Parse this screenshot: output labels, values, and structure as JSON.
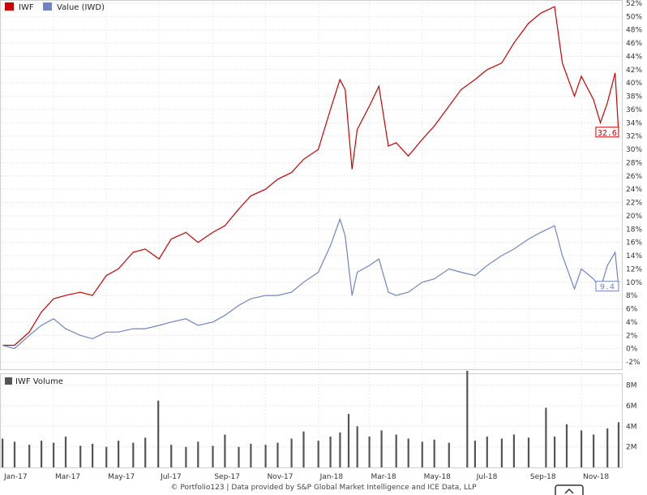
{
  "legend": {
    "items": [
      {
        "label": "IWF",
        "color": "#cc0000"
      },
      {
        "label": "Value (IWD)",
        "color": "#6f84c6"
      }
    ],
    "volume_label": "IWF Volume",
    "volume_color": "#555555"
  },
  "credit": "© Portfolio123 | Data provided by S&P Global Market Intelligence and ICE Data, LLP",
  "chart_data": [
    {
      "type": "line",
      "y_unit": "%",
      "ylim": [
        -2,
        52
      ],
      "y_ticks": [
        "-2%",
        "0%",
        "2%",
        "4%",
        "6%",
        "8%",
        "10%",
        "12%",
        "14%",
        "16%",
        "18%",
        "20%",
        "22%",
        "24%",
        "26%",
        "28%",
        "30%",
        "32%",
        "34%",
        "36%",
        "38%",
        "40%",
        "42%",
        "44%",
        "46%",
        "48%",
        "50%",
        "52%"
      ],
      "x_ticks": [
        "Jan-17",
        "Mar-17",
        "May-17",
        "Jul-17",
        "Sep-17",
        "Nov-17",
        "Jan-18",
        "Mar-18",
        "May-18",
        "Jul-18",
        "Sep-18",
        "Nov-18"
      ],
      "grid": true,
      "legend_position": "top-left",
      "series": [
        {
          "name": "IWF",
          "color": "#cc0000",
          "last_value_label": "32.6",
          "points": [
            [
              "2017-01-01",
              0.5
            ],
            [
              "2017-01-15",
              0.5
            ],
            [
              "2017-02-01",
              2.5
            ],
            [
              "2017-02-15",
              5.5
            ],
            [
              "2017-03-01",
              7.5
            ],
            [
              "2017-03-15",
              8.0
            ],
            [
              "2017-04-01",
              8.5
            ],
            [
              "2017-04-15",
              8.0
            ],
            [
              "2017-05-01",
              11.0
            ],
            [
              "2017-05-15",
              12.0
            ],
            [
              "2017-06-01",
              14.5
            ],
            [
              "2017-06-15",
              15.0
            ],
            [
              "2017-07-01",
              13.5
            ],
            [
              "2017-07-15",
              16.5
            ],
            [
              "2017-08-01",
              17.5
            ],
            [
              "2017-08-15",
              16.0
            ],
            [
              "2017-09-01",
              17.5
            ],
            [
              "2017-09-15",
              18.5
            ],
            [
              "2017-10-01",
              21.0
            ],
            [
              "2017-10-15",
              23.0
            ],
            [
              "2017-11-01",
              24.0
            ],
            [
              "2017-11-15",
              25.5
            ],
            [
              "2017-12-01",
              26.5
            ],
            [
              "2017-12-15",
              28.5
            ],
            [
              "2018-01-01",
              30.0
            ],
            [
              "2018-01-15",
              36.0
            ],
            [
              "2018-01-26",
              40.5
            ],
            [
              "2018-02-01",
              39.0
            ],
            [
              "2018-02-09",
              27.0
            ],
            [
              "2018-02-15",
              33.0
            ],
            [
              "2018-03-01",
              36.5
            ],
            [
              "2018-03-12",
              39.5
            ],
            [
              "2018-03-23",
              30.5
            ],
            [
              "2018-04-01",
              31.0
            ],
            [
              "2018-04-15",
              29.0
            ],
            [
              "2018-05-01",
              31.5
            ],
            [
              "2018-05-15",
              33.5
            ],
            [
              "2018-06-01",
              36.5
            ],
            [
              "2018-06-15",
              39.0
            ],
            [
              "2018-07-01",
              40.5
            ],
            [
              "2018-07-15",
              42.0
            ],
            [
              "2018-08-01",
              43.0
            ],
            [
              "2018-08-15",
              46.0
            ],
            [
              "2018-09-01",
              49.0
            ],
            [
              "2018-09-15",
              50.5
            ],
            [
              "2018-10-01",
              51.5
            ],
            [
              "2018-10-10",
              43.0
            ],
            [
              "2018-10-24",
              38.0
            ],
            [
              "2018-11-01",
              41.0
            ],
            [
              "2018-11-15",
              37.5
            ],
            [
              "2018-11-23",
              34.0
            ],
            [
              "2018-12-01",
              37.0
            ],
            [
              "2018-12-10",
              41.5
            ],
            [
              "2018-12-14",
              32.6
            ]
          ]
        },
        {
          "name": "Value (IWD)",
          "color": "#6f84c6",
          "last_value_label": "9.4",
          "points": [
            [
              "2017-01-01",
              0.5
            ],
            [
              "2017-01-15",
              0.0
            ],
            [
              "2017-02-01",
              2.0
            ],
            [
              "2017-02-15",
              3.5
            ],
            [
              "2017-03-01",
              4.5
            ],
            [
              "2017-03-15",
              3.0
            ],
            [
              "2017-04-01",
              2.0
            ],
            [
              "2017-04-15",
              1.5
            ],
            [
              "2017-05-01",
              2.5
            ],
            [
              "2017-05-15",
              2.5
            ],
            [
              "2017-06-01",
              3.0
            ],
            [
              "2017-06-15",
              3.0
            ],
            [
              "2017-07-01",
              3.5
            ],
            [
              "2017-07-15",
              4.0
            ],
            [
              "2017-08-01",
              4.5
            ],
            [
              "2017-08-15",
              3.5
            ],
            [
              "2017-09-01",
              4.0
            ],
            [
              "2017-09-15",
              5.0
            ],
            [
              "2017-10-01",
              6.5
            ],
            [
              "2017-10-15",
              7.5
            ],
            [
              "2017-11-01",
              8.0
            ],
            [
              "2017-11-15",
              8.0
            ],
            [
              "2017-12-01",
              8.5
            ],
            [
              "2017-12-15",
              10.0
            ],
            [
              "2018-01-01",
              11.5
            ],
            [
              "2018-01-15",
              15.5
            ],
            [
              "2018-01-26",
              19.5
            ],
            [
              "2018-02-01",
              17.0
            ],
            [
              "2018-02-09",
              8.0
            ],
            [
              "2018-02-15",
              11.5
            ],
            [
              "2018-03-01",
              12.5
            ],
            [
              "2018-03-12",
              13.5
            ],
            [
              "2018-03-23",
              8.5
            ],
            [
              "2018-04-01",
              8.0
            ],
            [
              "2018-04-15",
              8.5
            ],
            [
              "2018-05-01",
              10.0
            ],
            [
              "2018-05-15",
              10.5
            ],
            [
              "2018-06-01",
              12.0
            ],
            [
              "2018-06-15",
              11.5
            ],
            [
              "2018-07-01",
              11.0
            ],
            [
              "2018-07-15",
              12.5
            ],
            [
              "2018-08-01",
              14.0
            ],
            [
              "2018-08-15",
              15.0
            ],
            [
              "2018-09-01",
              16.5
            ],
            [
              "2018-09-15",
              17.5
            ],
            [
              "2018-10-01",
              18.5
            ],
            [
              "2018-10-10",
              14.0
            ],
            [
              "2018-10-24",
              9.0
            ],
            [
              "2018-11-01",
              12.0
            ],
            [
              "2018-11-15",
              10.5
            ],
            [
              "2018-11-23",
              9.0
            ],
            [
              "2018-12-01",
              12.5
            ],
            [
              "2018-12-10",
              14.5
            ],
            [
              "2018-12-14",
              9.4
            ]
          ]
        }
      ]
    },
    {
      "type": "bar",
      "name": "IWF Volume",
      "color": "#555555",
      "y_unit": "M",
      "ylim": [
        0,
        9
      ],
      "y_ticks": [
        "2M",
        "4M",
        "6M",
        "8M"
      ],
      "x_ticks": [
        "Jan-17",
        "Mar-17",
        "May-17",
        "Jul-17",
        "Sep-17",
        "Nov-17",
        "Jan-18",
        "Mar-18",
        "May-18",
        "Jul-18",
        "Sep-18",
        "Nov-18"
      ],
      "grid": true,
      "points": [
        [
          "2017-01-01",
          2.8
        ],
        [
          "2017-01-15",
          2.5
        ],
        [
          "2017-02-01",
          2.2
        ],
        [
          "2017-02-15",
          2.6
        ],
        [
          "2017-03-01",
          2.4
        ],
        [
          "2017-03-15",
          3.0
        ],
        [
          "2017-04-01",
          2.1
        ],
        [
          "2017-04-15",
          2.3
        ],
        [
          "2017-05-01",
          2.0
        ],
        [
          "2017-05-15",
          2.6
        ],
        [
          "2017-06-01",
          2.4
        ],
        [
          "2017-06-15",
          2.9
        ],
        [
          "2017-06-30",
          6.5
        ],
        [
          "2017-07-15",
          2.2
        ],
        [
          "2017-08-01",
          2.0
        ],
        [
          "2017-08-15",
          2.5
        ],
        [
          "2017-09-01",
          2.1
        ],
        [
          "2017-09-15",
          3.2
        ],
        [
          "2017-10-01",
          2.0
        ],
        [
          "2017-10-15",
          2.3
        ],
        [
          "2017-11-01",
          2.2
        ],
        [
          "2017-11-15",
          2.4
        ],
        [
          "2017-12-01",
          2.8
        ],
        [
          "2017-12-15",
          3.5
        ],
        [
          "2018-01-01",
          2.6
        ],
        [
          "2018-01-15",
          3.0
        ],
        [
          "2018-01-26",
          3.4
        ],
        [
          "2018-02-05",
          5.2
        ],
        [
          "2018-02-15",
          4.0
        ],
        [
          "2018-03-01",
          3.0
        ],
        [
          "2018-03-15",
          3.6
        ],
        [
          "2018-04-01",
          3.2
        ],
        [
          "2018-04-15",
          2.8
        ],
        [
          "2018-05-01",
          2.5
        ],
        [
          "2018-05-15",
          2.7
        ],
        [
          "2018-06-01",
          2.4
        ],
        [
          "2018-06-22",
          9.4
        ],
        [
          "2018-07-01",
          2.6
        ],
        [
          "2018-07-15",
          3.0
        ],
        [
          "2018-08-01",
          2.8
        ],
        [
          "2018-08-15",
          3.2
        ],
        [
          "2018-09-01",
          2.9
        ],
        [
          "2018-09-21",
          5.8
        ],
        [
          "2018-10-01",
          3.0
        ],
        [
          "2018-10-15",
          4.2
        ],
        [
          "2018-11-01",
          3.6
        ],
        [
          "2018-11-15",
          3.2
        ],
        [
          "2018-12-01",
          3.8
        ],
        [
          "2018-12-14",
          4.4
        ]
      ]
    }
  ]
}
